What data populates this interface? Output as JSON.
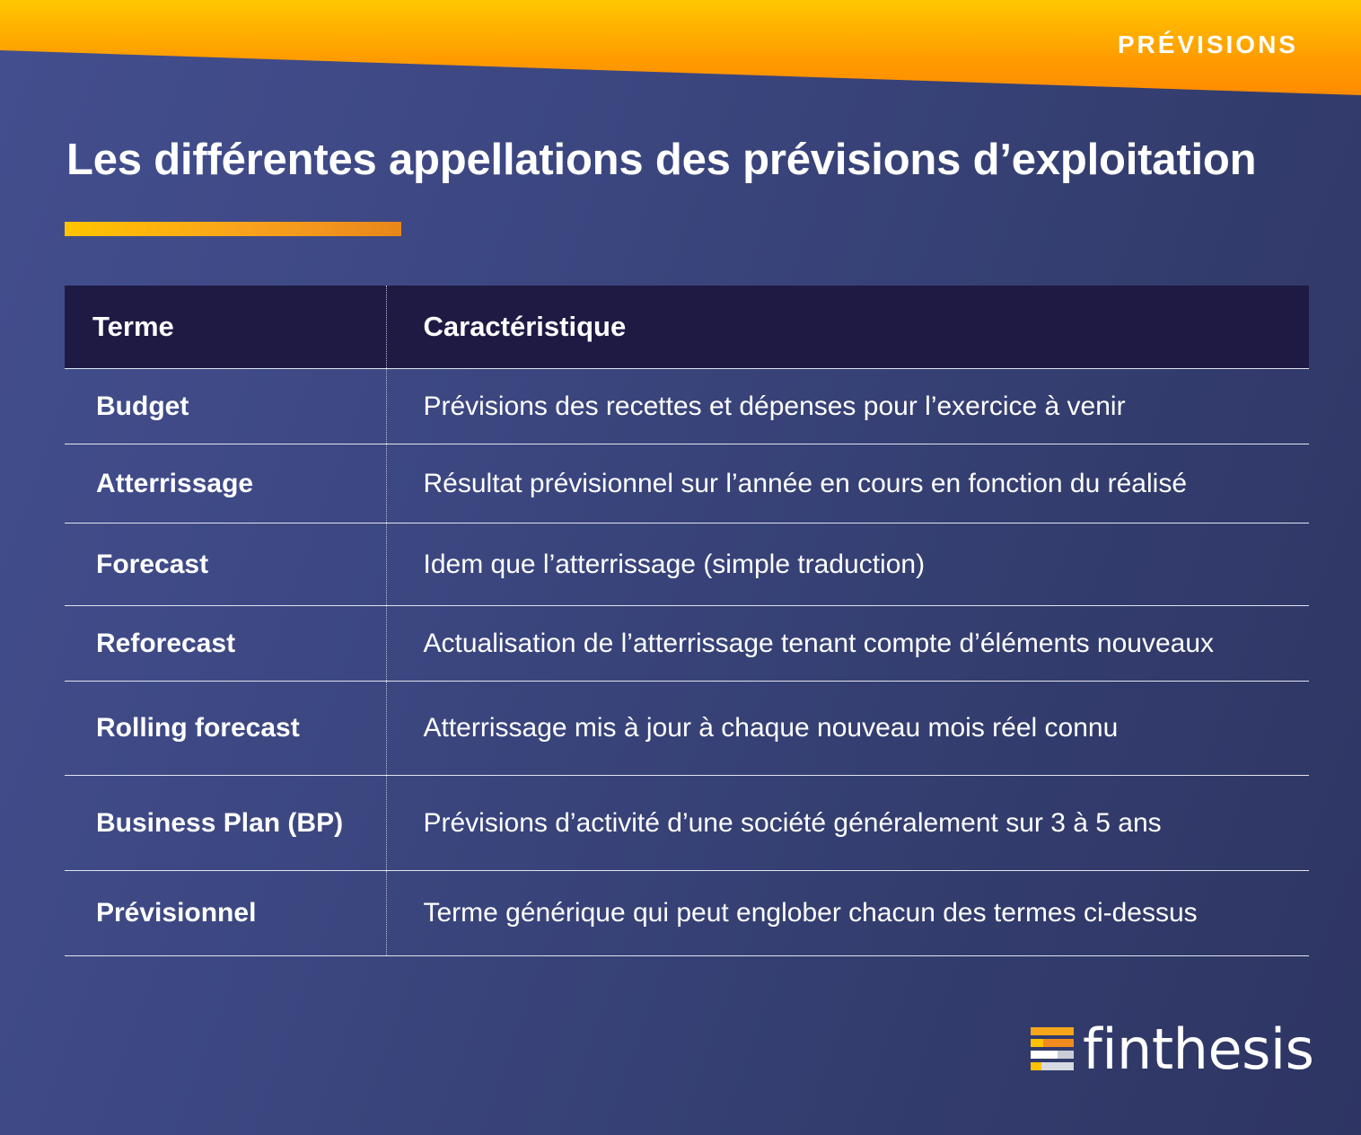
{
  "header": {
    "section_tag": "PRÉVISIONS",
    "title": "Les différentes appellations des prévisions d’exploitation"
  },
  "table": {
    "columns": [
      "Terme",
      "Caractéristique"
    ],
    "rows": [
      {
        "term": "Budget",
        "description": "Prévisions des recettes et dépenses pour l’exercice à venir"
      },
      {
        "term": "Atterrissage",
        "description": "Résultat prévisionnel sur l’année en cours en fonction du réalisé"
      },
      {
        "term": "Forecast",
        "description": "Idem que l’atterrissage (simple traduction)"
      },
      {
        "term": "Reforecast",
        "description": "Actualisation de l’atterrissage tenant compte d’éléments nouveaux"
      },
      {
        "term": "Rolling forecast",
        "description": "Atterrissage mis à jour à chaque nouveau mois réel connu"
      },
      {
        "term": "Business Plan (BP)",
        "description": "Prévisions d’activité d’une société généralement sur 3 à 5 ans"
      },
      {
        "term": "Prévisionnel",
        "description": "Terme générique qui peut englober chacun des termes ci-dessus"
      }
    ]
  },
  "footer": {
    "brand": "finthesis"
  },
  "colors": {
    "accent_orange": "#ff9c00",
    "accent_yellow": "#ffc700",
    "header_row": "#1f1a44",
    "background": "#3c4781"
  },
  "icons": {
    "logo_mark": "stacked-bars-icon"
  }
}
